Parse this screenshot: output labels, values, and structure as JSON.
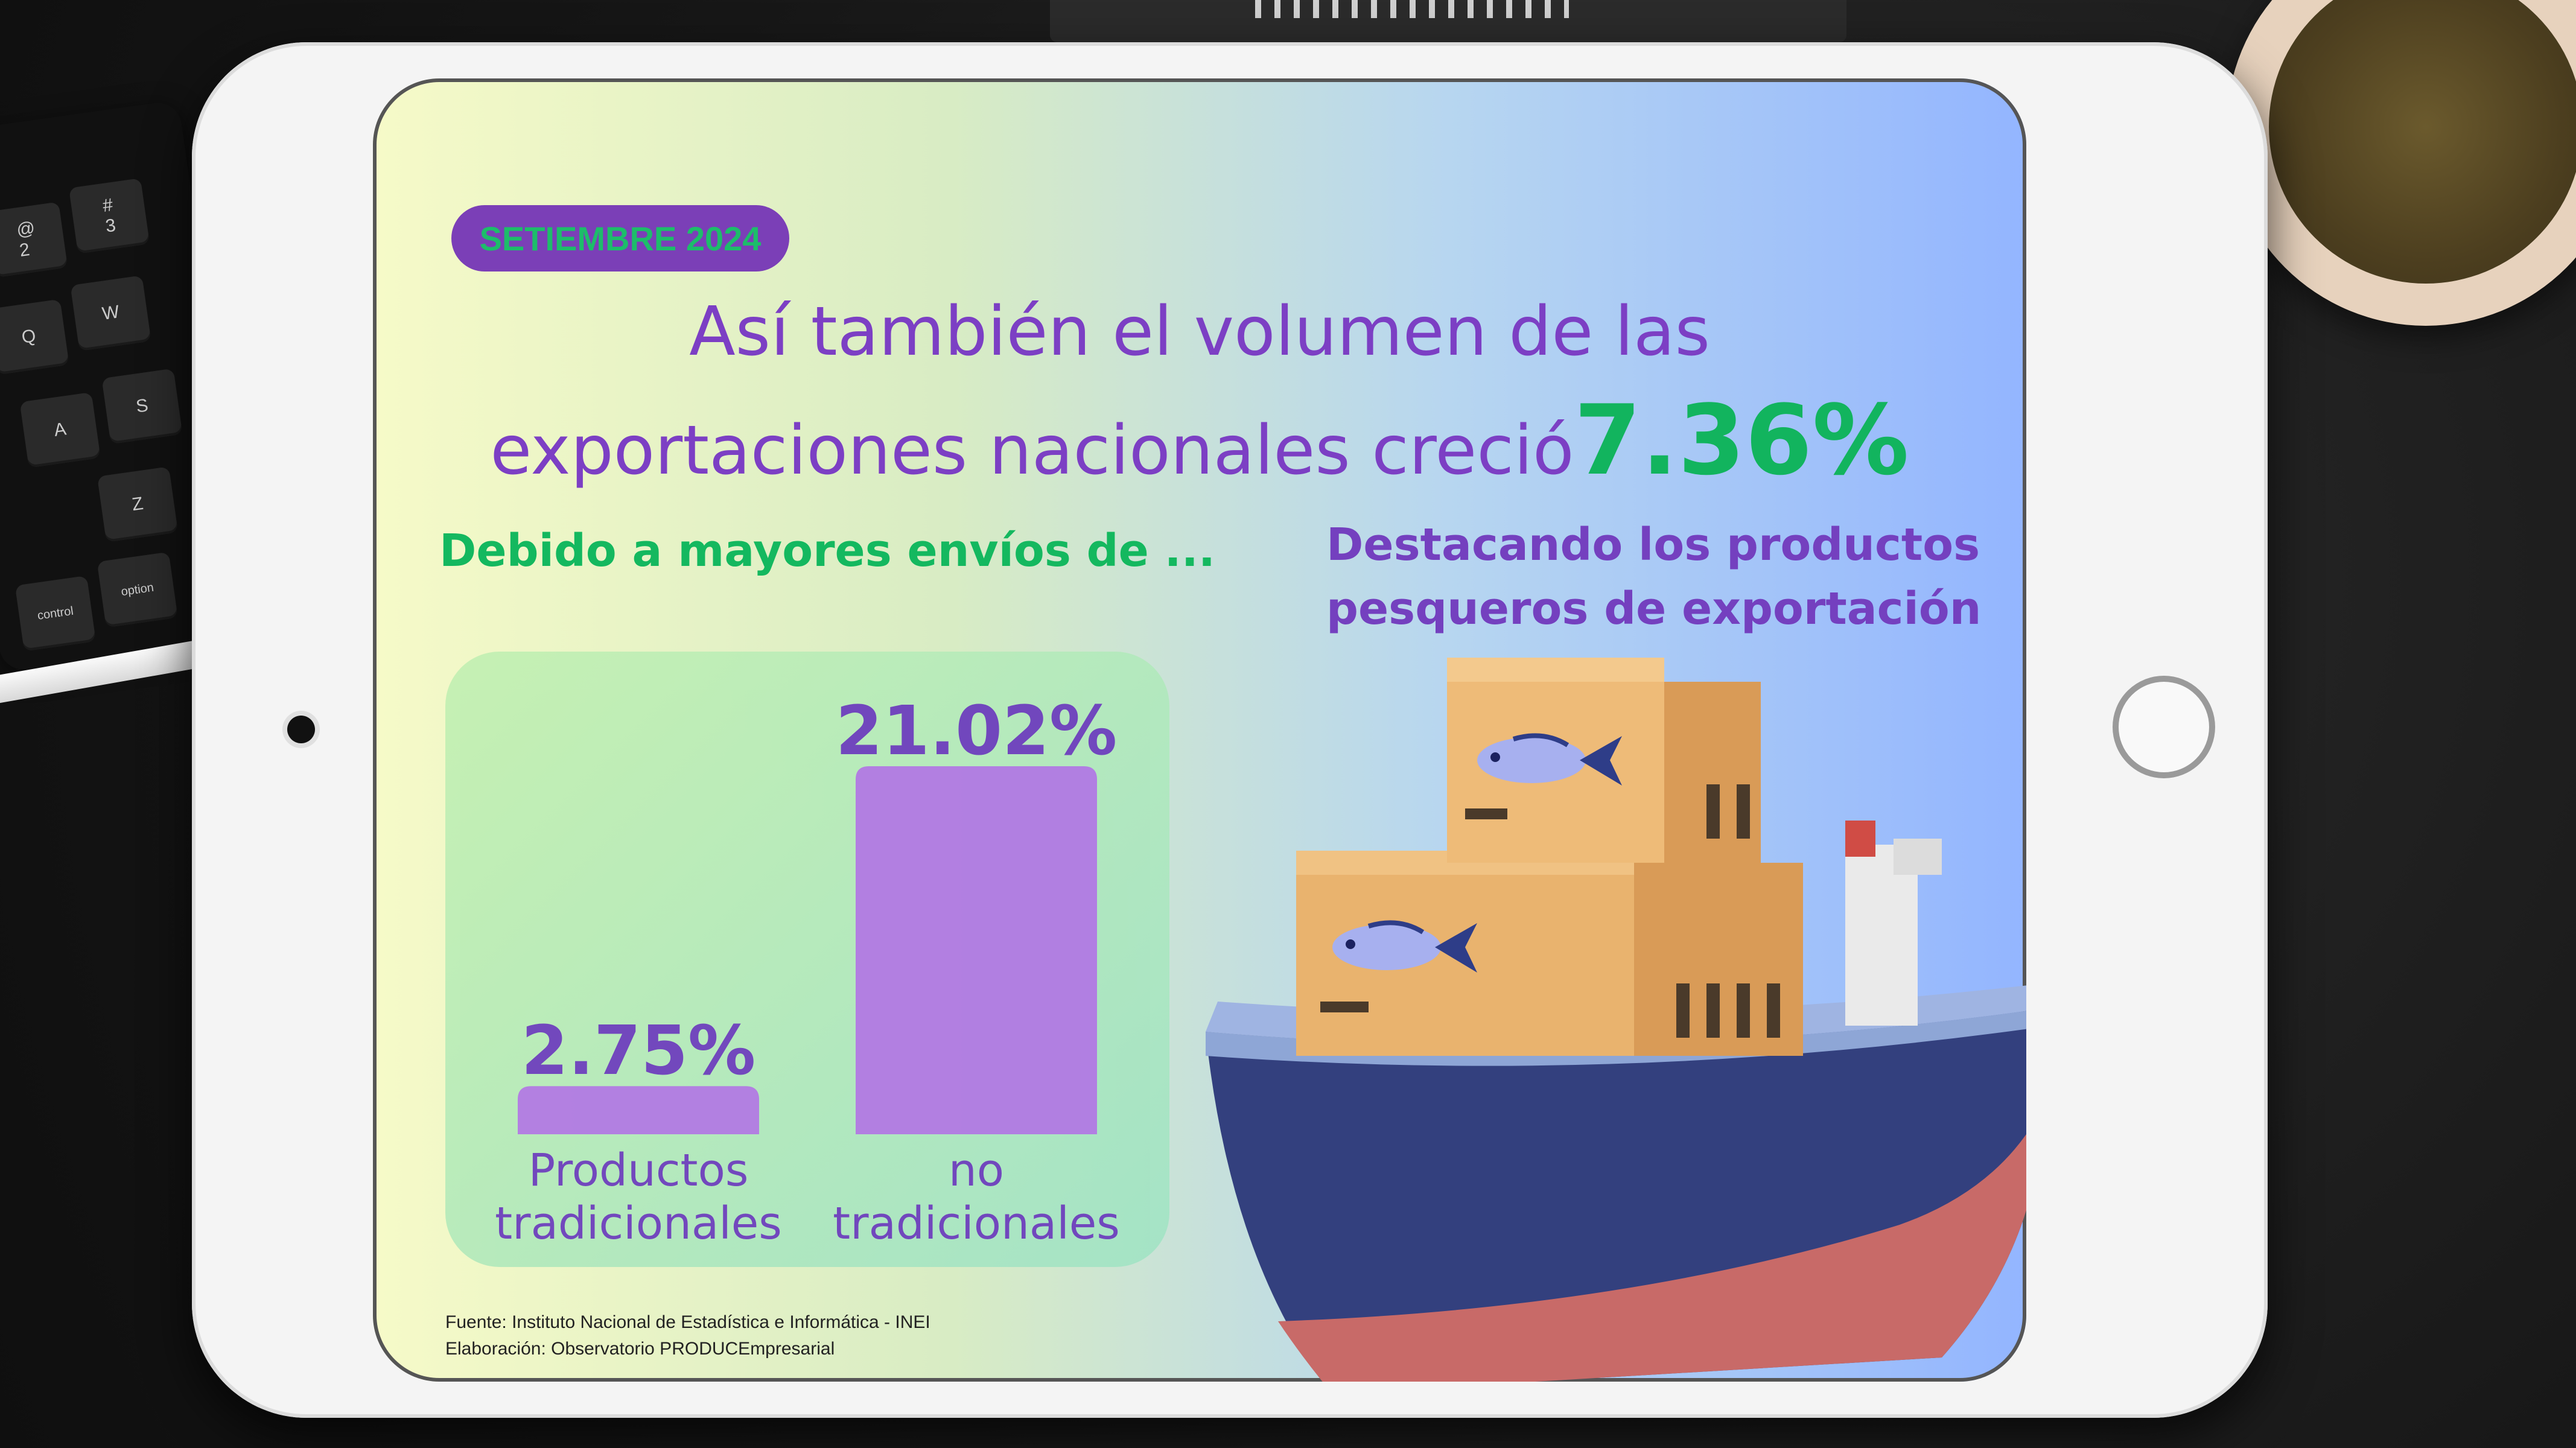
{
  "badge": {
    "date": "SETIEMBRE 2024"
  },
  "headline": {
    "line1": "Así también el volumen de las",
    "line2": "exportaciones nacionales  creció",
    "percent": "7.36%"
  },
  "subheading_left": "Debido a mayores envíos de ...",
  "subheading_right": [
    "Destacando los productos",
    "pesqueros de exportación"
  ],
  "chart_data": {
    "type": "bar",
    "categories": [
      [
        "Productos",
        "tradicionales"
      ],
      [
        "no",
        "tradicionales"
      ]
    ],
    "values": [
      2.75,
      21.02
    ],
    "data_labels": [
      "2.75%",
      "21.02%"
    ],
    "unit": "%",
    "bar_color": "#b07ae3",
    "label_color": "#6c3fbd"
  },
  "footer": {
    "source": "Fuente: Instituto Nacional de Estadística e Informática - INEI",
    "elaboration": "Elaboración: Observatorio PRODUCEmpresarial"
  },
  "colors": {
    "accent_purple": "#7c3fc4",
    "accent_green": "#12b45e"
  }
}
